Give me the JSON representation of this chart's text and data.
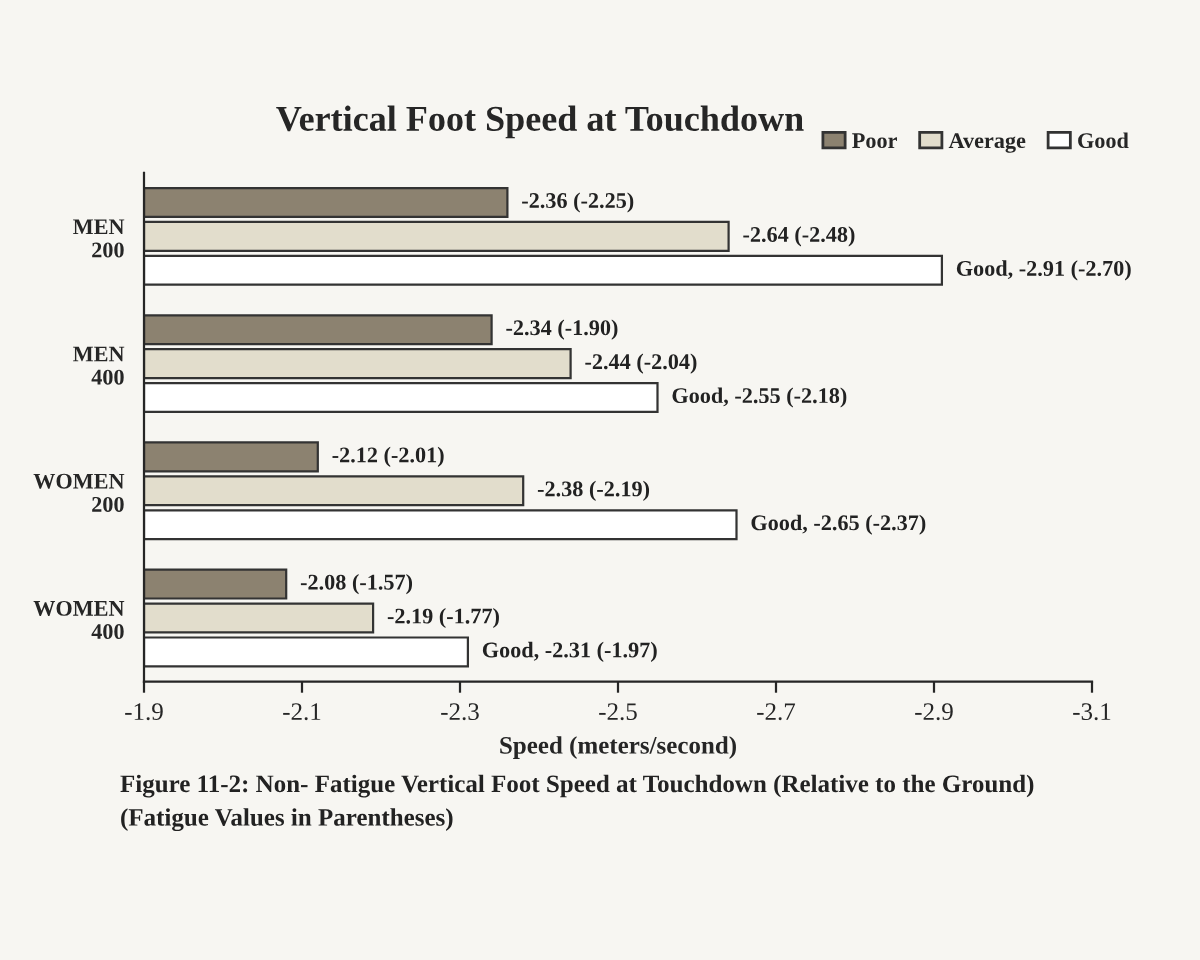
{
  "chart_data": {
    "type": "bar",
    "orientation": "horizontal",
    "title": "Vertical Foot Speed at Touchdown",
    "xlabel": "Speed (meters/second)",
    "categories": [
      "MEN\n200",
      "MEN\n400",
      "WOMEN\n200",
      "WOMEN\n400"
    ],
    "series": [
      {
        "name": "Poor",
        "color": "#8c8270",
        "values": [
          -2.36,
          -2.34,
          -2.12,
          -2.08
        ],
        "value_labels": [
          "-2.36 (-2.25)",
          "-2.34 (-1.90)",
          "-2.12 (-2.01)",
          "-2.08 (-1.57)"
        ]
      },
      {
        "name": "Average",
        "color": "#e2ddcc",
        "values": [
          -2.64,
          -2.44,
          -2.38,
          -2.19
        ],
        "value_labels": [
          "-2.64 (-2.48)",
          "-2.44 (-2.04)",
          "-2.38 (-2.19)",
          "-2.19 (-1.77)"
        ]
      },
      {
        "name": "Good",
        "color": "#ffffff",
        "values": [
          -2.91,
          -2.55,
          -2.65,
          -2.31
        ],
        "value_labels": [
          "Good, -2.91 (-2.70)",
          "Good, -2.55 (-2.18)",
          "Good, -2.65 (-2.37)",
          "Good, -2.31 (-1.97)"
        ]
      }
    ],
    "xlim": [
      -1.9,
      -3.1
    ],
    "xticks": [
      -1.9,
      -2.1,
      -2.3,
      -2.5,
      -2.7,
      -2.9,
      -3.1
    ],
    "legend": "top right",
    "grid": false,
    "annotations": [
      "Figure 11-2: Non- Fatigue Vertical Foot Speed at Touchdown (Relative to the Ground)",
      "(Fatigue Values in Parentheses)"
    ]
  }
}
